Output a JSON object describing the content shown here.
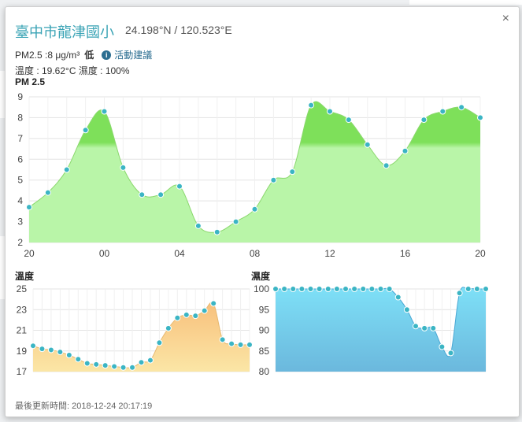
{
  "popup": {
    "title": "臺中市龍津國小",
    "coords": "24.198°N / 120.523°E",
    "pm_text": "PM2.5 :8 μg/m³",
    "pm_level": "低",
    "advice_label": "活動建議",
    "temp_humidity_text": "溫度 : 19.62°C 濕度 : 100%",
    "close_label": "×",
    "pm_section_label": "PM 2.5",
    "temp_section_label": "溫度",
    "humidity_section_label": "濕度",
    "updated_text": "最後更新時間: 2018-12-24 20:17:19"
  },
  "chart_data": [
    {
      "type": "area",
      "title": "PM 2.5",
      "x_ticks": [
        "20",
        "00",
        "04",
        "08",
        "12",
        "16",
        "20"
      ],
      "y_ticks": [
        2,
        3,
        4,
        5,
        6,
        7,
        8,
        9
      ],
      "ylim": [
        2,
        9
      ],
      "grid": true,
      "values": [
        3.7,
        4.4,
        5.5,
        7.4,
        8.3,
        5.6,
        4.3,
        4.3,
        4.7,
        2.8,
        2.5,
        3.0,
        3.6,
        5.0,
        5.4,
        8.6,
        8.3,
        7.9,
        6.7,
        5.7,
        6.4,
        7.9,
        8.3,
        8.5,
        8.0
      ],
      "colors": {
        "fill_low": "#b9f5a8",
        "fill_high": "#7ee05a",
        "point": "#3bb5c4"
      }
    },
    {
      "type": "area",
      "title": "溫度",
      "y_ticks": [
        17,
        19,
        21,
        23,
        25
      ],
      "ylim": [
        17,
        25
      ],
      "grid": true,
      "values": [
        19.5,
        19.2,
        19.1,
        18.9,
        18.6,
        18.2,
        17.8,
        17.7,
        17.6,
        17.5,
        17.4,
        17.4,
        17.9,
        18.1,
        19.8,
        21.2,
        22.2,
        22.5,
        22.4,
        22.9,
        23.6,
        20.1,
        19.7,
        19.6,
        19.6
      ],
      "colors": {
        "fill_low": "#fbe6a6",
        "fill_high": "#f8c07c",
        "point": "#3bb5c4"
      }
    },
    {
      "type": "area",
      "title": "濕度",
      "y_ticks": [
        80,
        85,
        90,
        95,
        100
      ],
      "ylim": [
        80,
        100
      ],
      "grid": true,
      "values": [
        100,
        100,
        100,
        100,
        100,
        100,
        100,
        100,
        100,
        100,
        100,
        100,
        100,
        100,
        98,
        95,
        91,
        90.5,
        90.5,
        86,
        84.5,
        99,
        100,
        100,
        100
      ],
      "colors": {
        "fill_low": "#6bb8dd",
        "fill_high": "#7ee0f7",
        "point": "#3bb5c4"
      }
    }
  ]
}
